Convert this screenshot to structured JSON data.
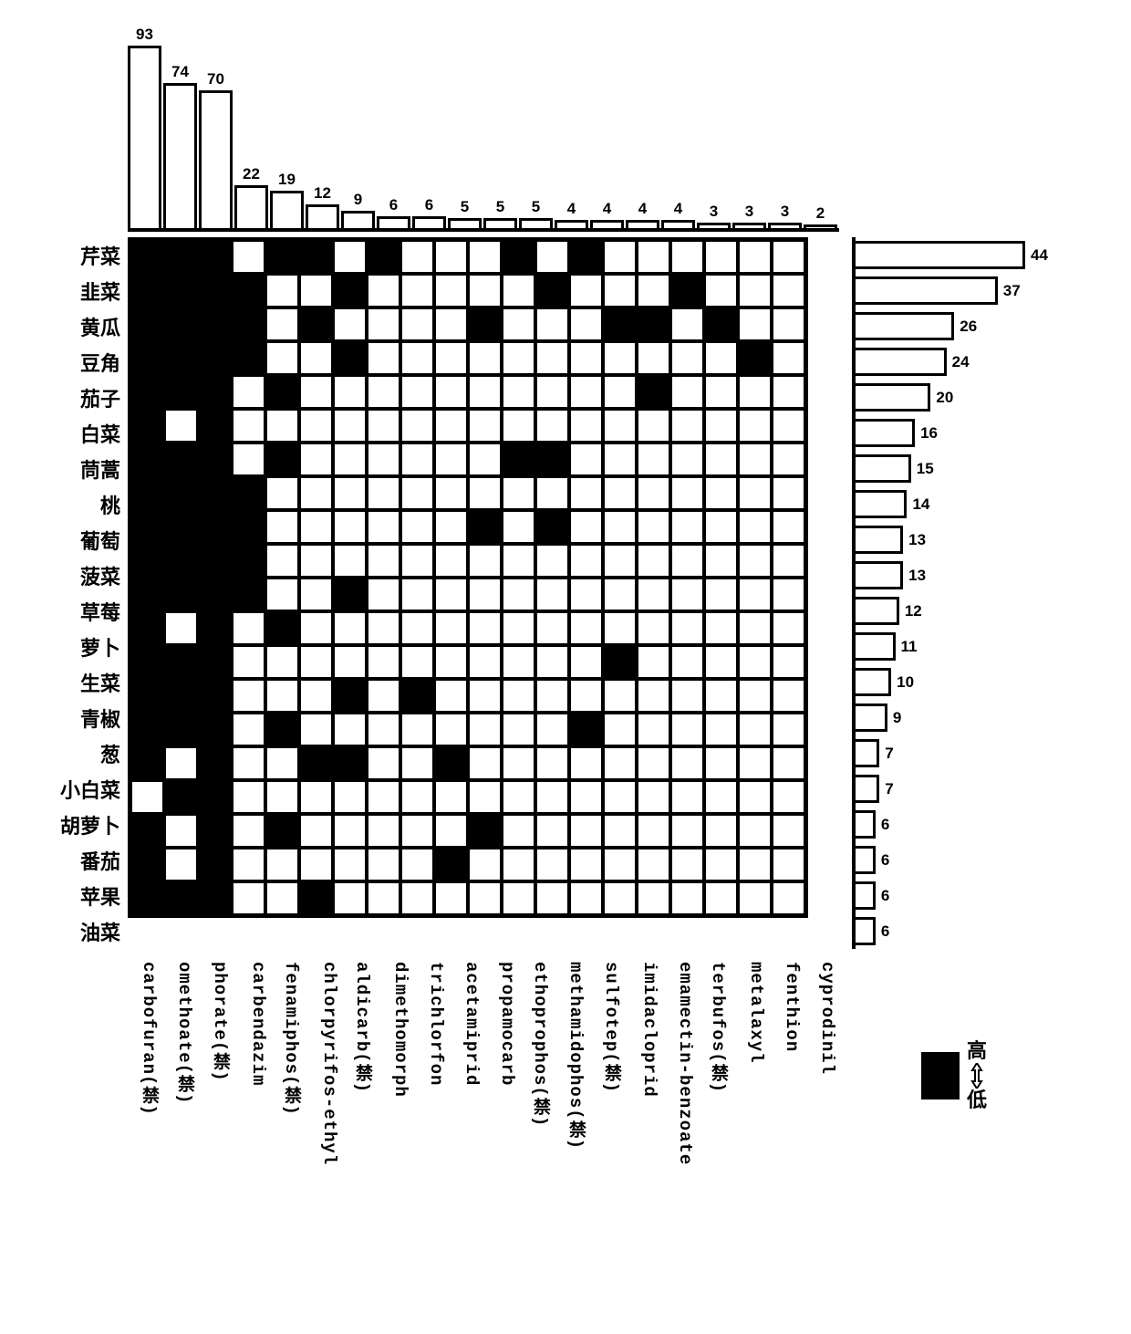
{
  "chart": {
    "type": "heatmap-with-marginals",
    "cell_size": 37,
    "cell_gap": 2,
    "top_bar_max": 93,
    "top_bar_area_height": 200,
    "right_bar_max": 44,
    "right_bar_area_width": 190,
    "colors": {
      "fill_high": "#000000",
      "fill_low": "#ffffff",
      "border": "#000000",
      "background": "#ffffff",
      "text": "#000000"
    },
    "fonts": {
      "row_label_size": 22,
      "col_label_size": 19,
      "bar_label_size": 17
    },
    "columns": [
      {
        "label": "carbofuran(禁)",
        "value": 93
      },
      {
        "label": "omethoate(禁)",
        "value": 74
      },
      {
        "label": "phorate(禁)",
        "value": 70
      },
      {
        "label": "carbendazim",
        "value": 22
      },
      {
        "label": "fenamiphos(禁)",
        "value": 19
      },
      {
        "label": "chlorpyrifos-ethyl",
        "value": 12
      },
      {
        "label": "aldicarb(禁)",
        "value": 9
      },
      {
        "label": "dimethomorph",
        "value": 6
      },
      {
        "label": "trichlorfon",
        "value": 6
      },
      {
        "label": "acetamiprid",
        "value": 5
      },
      {
        "label": "propamocarb",
        "value": 5
      },
      {
        "label": "ethoprophos(禁)",
        "value": 5
      },
      {
        "label": "methamidophos(禁)",
        "value": 4
      },
      {
        "label": "sulfotep(禁)",
        "value": 4
      },
      {
        "label": "imidacloprid",
        "value": 4
      },
      {
        "label": "emamectin-benzoate",
        "value": 4
      },
      {
        "label": "terbufos(禁)",
        "value": 3
      },
      {
        "label": "metalaxyl",
        "value": 3
      },
      {
        "label": "fenthion",
        "value": 3
      },
      {
        "label": "cyprodinil",
        "value": 2
      }
    ],
    "rows": [
      {
        "label": "芹菜",
        "value": 44,
        "cells": [
          1,
          1,
          1,
          0,
          1,
          1,
          0,
          1,
          0,
          0,
          0,
          1,
          0,
          1,
          0,
          0,
          0,
          0,
          0,
          0
        ]
      },
      {
        "label": "韭菜",
        "value": 37,
        "cells": [
          1,
          1,
          1,
          1,
          0,
          0,
          1,
          0,
          0,
          0,
          0,
          0,
          1,
          0,
          0,
          0,
          1,
          0,
          0,
          0
        ]
      },
      {
        "label": "黄瓜",
        "value": 26,
        "cells": [
          1,
          1,
          1,
          1,
          0,
          1,
          0,
          0,
          0,
          0,
          1,
          0,
          0,
          0,
          1,
          1,
          0,
          1,
          0,
          0
        ]
      },
      {
        "label": "豆角",
        "value": 24,
        "cells": [
          1,
          1,
          1,
          1,
          0,
          0,
          1,
          0,
          0,
          0,
          0,
          0,
          0,
          0,
          0,
          0,
          0,
          0,
          1,
          0
        ]
      },
      {
        "label": "茄子",
        "value": 20,
        "cells": [
          1,
          1,
          1,
          0,
          1,
          0,
          0,
          0,
          0,
          0,
          0,
          0,
          0,
          0,
          0,
          1,
          0,
          0,
          0,
          0
        ]
      },
      {
        "label": "白菜",
        "value": 16,
        "cells": [
          1,
          0,
          1,
          0,
          0,
          0,
          0,
          0,
          0,
          0,
          0,
          0,
          0,
          0,
          0,
          0,
          0,
          0,
          0,
          0
        ]
      },
      {
        "label": "茼蒿",
        "value": 15,
        "cells": [
          1,
          1,
          1,
          0,
          1,
          0,
          0,
          0,
          0,
          0,
          0,
          1,
          1,
          0,
          0,
          0,
          0,
          0,
          0,
          0
        ]
      },
      {
        "label": "桃",
        "value": 14,
        "cells": [
          1,
          1,
          1,
          1,
          0,
          0,
          0,
          0,
          0,
          0,
          0,
          0,
          0,
          0,
          0,
          0,
          0,
          0,
          0,
          0
        ]
      },
      {
        "label": "葡萄",
        "value": 13,
        "cells": [
          1,
          1,
          1,
          1,
          0,
          0,
          0,
          0,
          0,
          0,
          1,
          0,
          1,
          0,
          0,
          0,
          0,
          0,
          0,
          0
        ]
      },
      {
        "label": "菠菜",
        "value": 13,
        "cells": [
          1,
          1,
          1,
          1,
          0,
          0,
          0,
          0,
          0,
          0,
          0,
          0,
          0,
          0,
          0,
          0,
          0,
          0,
          0,
          0
        ]
      },
      {
        "label": "草莓",
        "value": 12,
        "cells": [
          1,
          1,
          1,
          1,
          0,
          0,
          1,
          0,
          0,
          0,
          0,
          0,
          0,
          0,
          0,
          0,
          0,
          0,
          0,
          0
        ]
      },
      {
        "label": "萝卜",
        "value": 11,
        "cells": [
          1,
          0,
          1,
          0,
          1,
          0,
          0,
          0,
          0,
          0,
          0,
          0,
          0,
          0,
          0,
          0,
          0,
          0,
          0,
          0
        ]
      },
      {
        "label": "生菜",
        "value": 10,
        "cells": [
          1,
          1,
          1,
          0,
          0,
          0,
          0,
          0,
          0,
          0,
          0,
          0,
          0,
          0,
          1,
          0,
          0,
          0,
          0,
          0
        ]
      },
      {
        "label": "青椒",
        "value": 9,
        "cells": [
          1,
          1,
          1,
          0,
          0,
          0,
          1,
          0,
          1,
          0,
          0,
          0,
          0,
          0,
          0,
          0,
          0,
          0,
          0,
          0
        ]
      },
      {
        "label": "葱",
        "value": 7,
        "cells": [
          1,
          1,
          1,
          0,
          1,
          0,
          0,
          0,
          0,
          0,
          0,
          0,
          0,
          1,
          0,
          0,
          0,
          0,
          0,
          0
        ]
      },
      {
        "label": "小白菜",
        "value": 7,
        "cells": [
          1,
          0,
          1,
          0,
          0,
          1,
          1,
          0,
          0,
          1,
          0,
          0,
          0,
          0,
          0,
          0,
          0,
          0,
          0,
          0
        ]
      },
      {
        "label": "胡萝卜",
        "value": 6,
        "cells": [
          0,
          1,
          1,
          0,
          0,
          0,
          0,
          0,
          0,
          0,
          0,
          0,
          0,
          0,
          0,
          0,
          0,
          0,
          0,
          0
        ]
      },
      {
        "label": "番茄",
        "value": 6,
        "cells": [
          1,
          0,
          1,
          0,
          1,
          0,
          0,
          0,
          0,
          0,
          1,
          0,
          0,
          0,
          0,
          0,
          0,
          0,
          0,
          0
        ]
      },
      {
        "label": "苹果",
        "value": 6,
        "cells": [
          1,
          0,
          1,
          0,
          0,
          0,
          0,
          0,
          0,
          1,
          0,
          0,
          0,
          0,
          0,
          0,
          0,
          0,
          0,
          0
        ]
      },
      {
        "label": "油菜",
        "value": 6,
        "cells": [
          1,
          1,
          1,
          0,
          0,
          1,
          0,
          0,
          0,
          0,
          0,
          0,
          0,
          0,
          0,
          0,
          0,
          0,
          0,
          0
        ]
      }
    ],
    "legend": {
      "high": "高",
      "low": "低"
    }
  }
}
